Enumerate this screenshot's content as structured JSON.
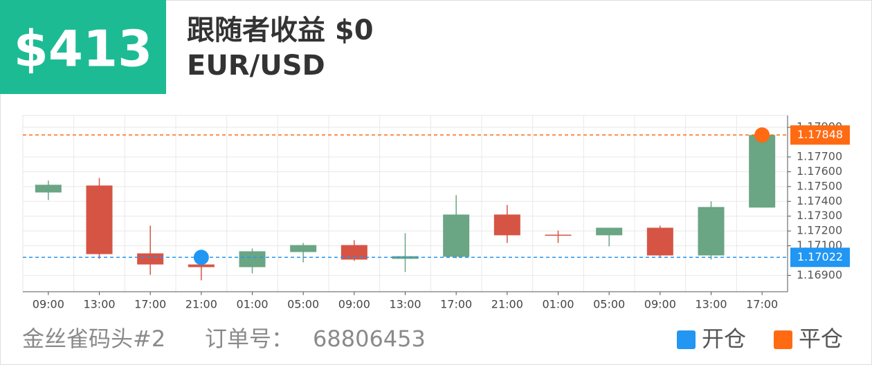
{
  "header": {
    "amount": "$413",
    "title": "跟随者收益 $0",
    "symbol": "EUR/USD"
  },
  "chart_data": {
    "type": "candlestick",
    "categories": [
      "09:00",
      "13:00",
      "17:00",
      "21:00",
      "01:00",
      "05:00",
      "09:00",
      "13:00",
      "17:00",
      "21:00",
      "01:00",
      "05:00",
      "09:00",
      "13:00",
      "17:00"
    ],
    "open": [
      1.1746,
      1.17507,
      1.17049,
      1.16974,
      1.16956,
      1.17058,
      1.17105,
      1.17012,
      1.17026,
      1.17311,
      1.17175,
      1.17171,
      1.17222,
      1.17035,
      1.17358
    ],
    "high": [
      1.1754,
      1.17558,
      1.17236,
      1.16988,
      1.17082,
      1.17119,
      1.17138,
      1.17185,
      1.17442,
      1.17376,
      1.17203,
      1.17222,
      1.17236,
      1.174,
      1.17848
    ],
    "low": [
      1.17409,
      1.17012,
      1.16904,
      1.16867,
      1.16914,
      1.16988,
      1.16998,
      1.16923,
      1.17016,
      1.17119,
      1.17119,
      1.17096,
      1.17026,
      1.17007,
      1.17358
    ],
    "close": [
      1.17512,
      1.17044,
      1.16974,
      1.16956,
      1.17063,
      1.17105,
      1.17007,
      1.1703,
      1.17311,
      1.17171,
      1.17171,
      1.17222,
      1.17035,
      1.17362,
      1.17848
    ],
    "up_color": "#6aa584",
    "down_color": "#d65444",
    "ylim": [
      1.1679,
      1.1798
    ],
    "yticks": [
      {
        "value": 1.169,
        "label": "1.16900"
      },
      {
        "value": 1.171,
        "label": "1.17100"
      },
      {
        "value": 1.172,
        "label": "1.17200"
      },
      {
        "value": 1.173,
        "label": "1.17300"
      },
      {
        "value": 1.174,
        "label": "1.17400"
      },
      {
        "value": 1.175,
        "label": "1.17500"
      },
      {
        "value": 1.176,
        "label": "1.17600"
      },
      {
        "value": 1.177,
        "label": "1.17700"
      },
      {
        "value": 1.179,
        "label": "1.17900"
      }
    ],
    "grid": true,
    "open_line": {
      "value": 1.17022,
      "index": 3,
      "color": "#2196f3"
    },
    "close_line": {
      "value": 1.17848,
      "index": 14,
      "color": "#ff6a13"
    },
    "legend": [
      {
        "name": "开仓",
        "color": "#2196f3"
      },
      {
        "name": "平仓",
        "color": "#ff6a13"
      }
    ]
  },
  "footer": {
    "account": "金丝雀码头#2",
    "order_label": "订单号：",
    "order_number": "68806453"
  }
}
